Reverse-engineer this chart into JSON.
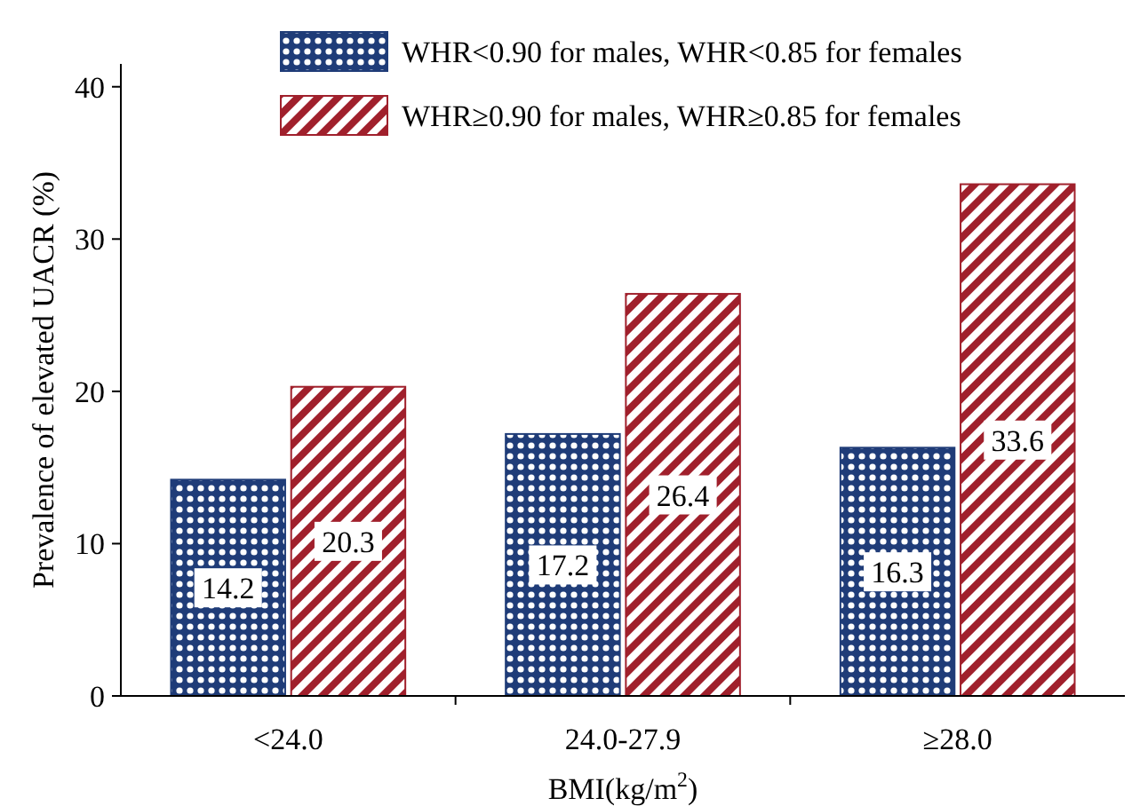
{
  "chart_data": {
    "type": "bar",
    "xlabel": "BMI(kg/m$^{2}$)",
    "ylabel": "Prevalence of elevated UACR (%)",
    "categories": [
      "<24.0",
      "24.0-27.9",
      "≥28.0"
    ],
    "series": [
      {
        "name": "WHR<0.90 for males, WHR<0.85 for females",
        "color": "#1f3c78",
        "values": [
          14.2,
          17.2,
          16.3
        ]
      },
      {
        "name": "WHR≥0.90 for males, WHR≥0.85 for females",
        "color": "#a0202c",
        "values": [
          20.3,
          26.4,
          33.6
        ]
      }
    ],
    "ylim": [
      0,
      41.5
    ],
    "yticks": [
      0,
      10,
      20,
      30,
      40
    ],
    "data_labels": true,
    "legend": "top",
    "grid": false
  }
}
